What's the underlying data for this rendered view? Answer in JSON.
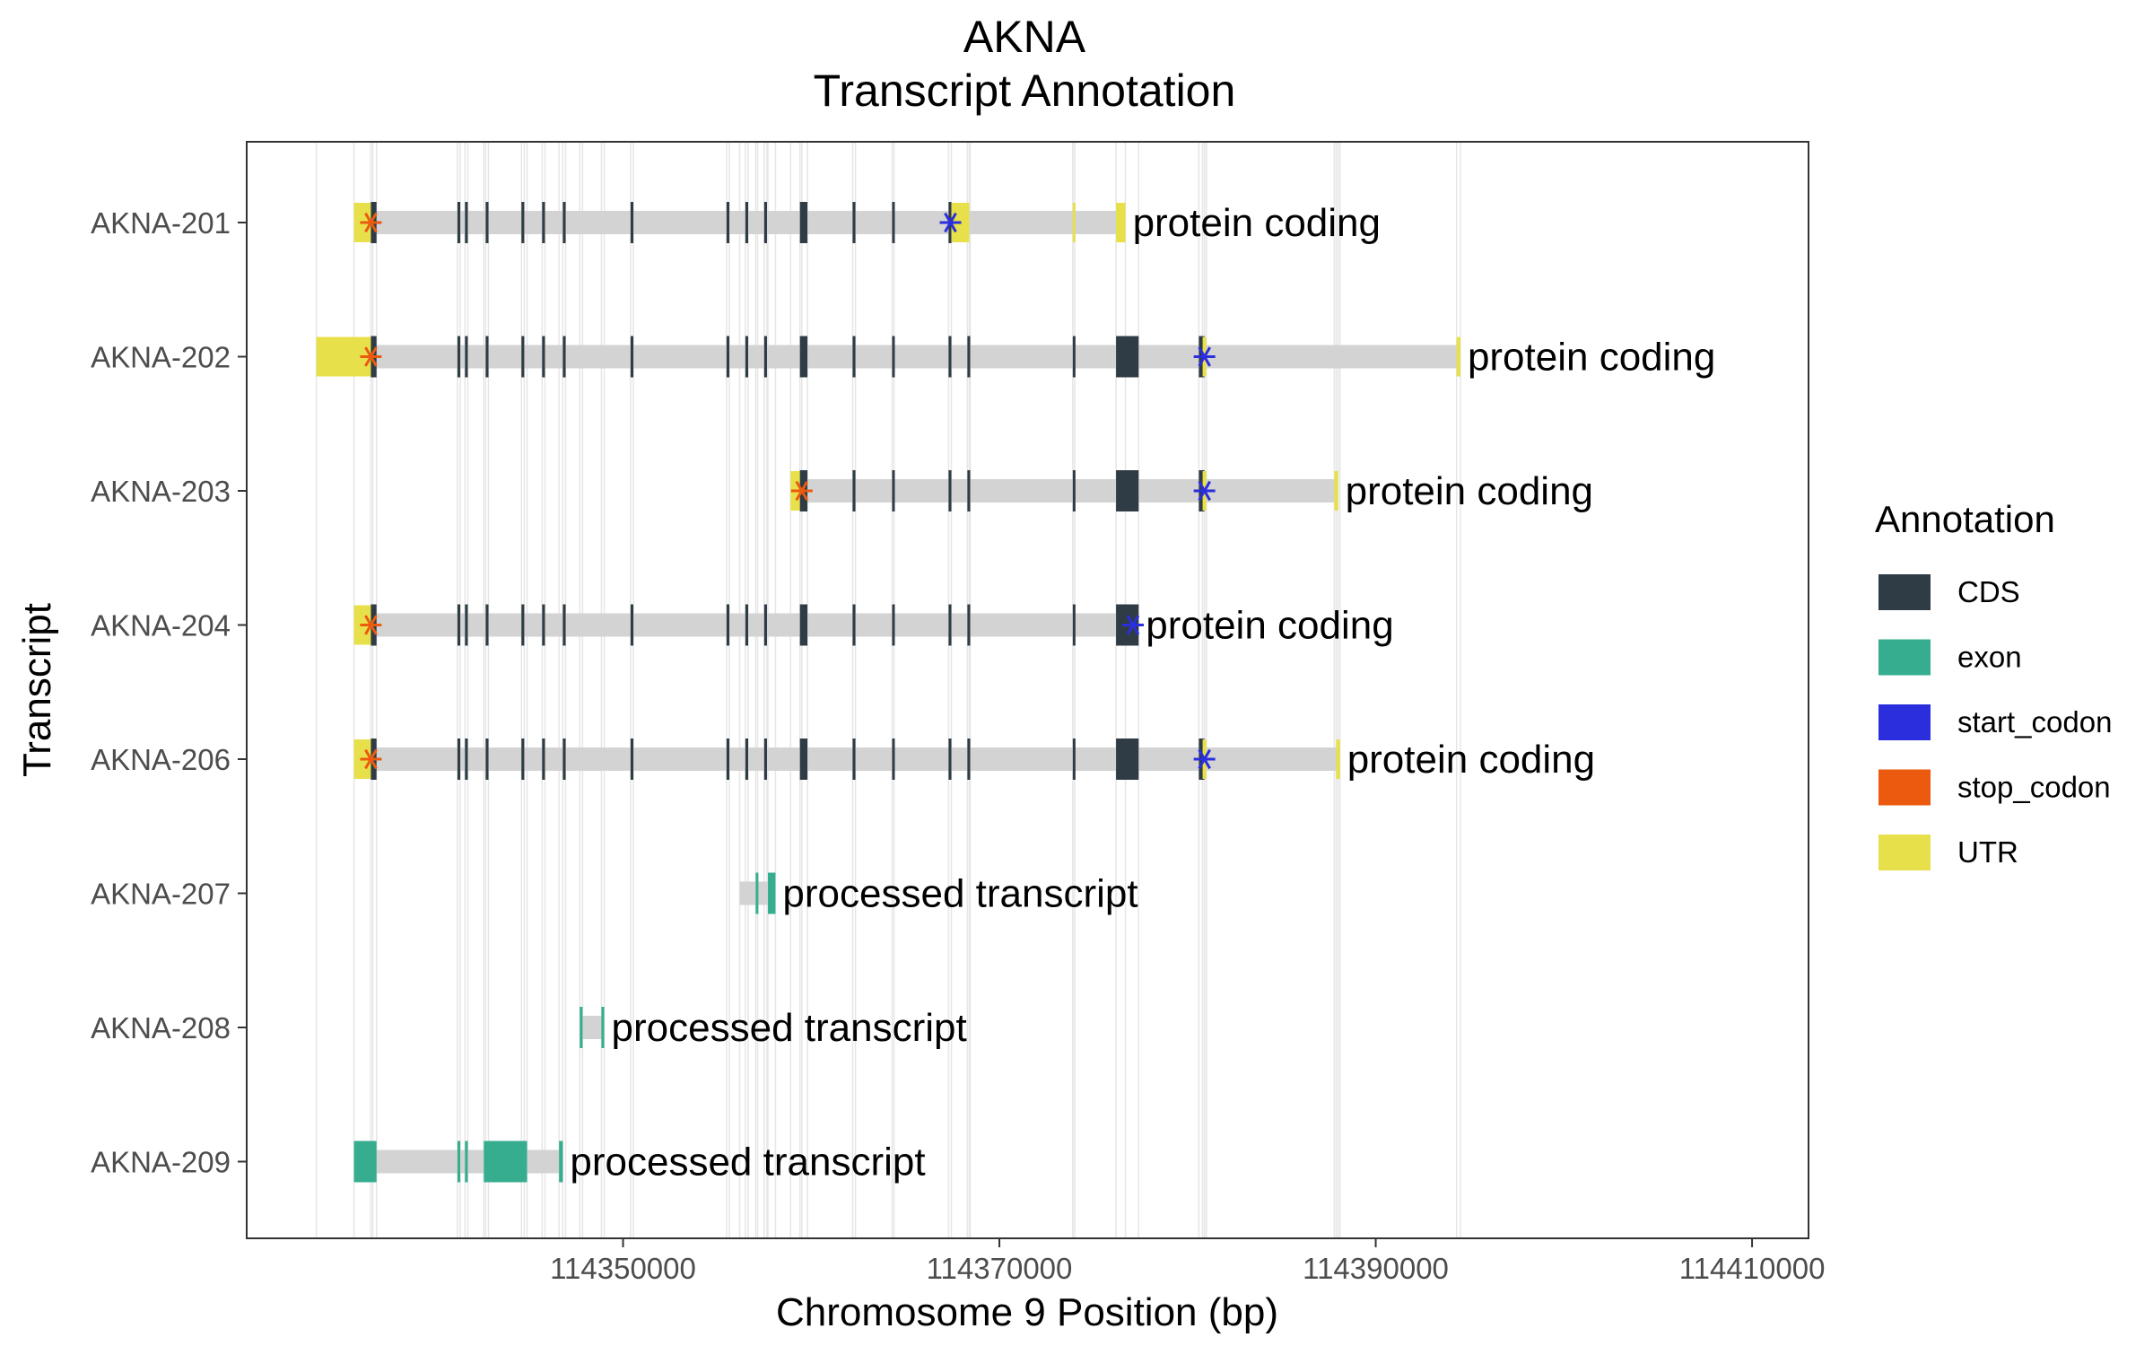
{
  "chart_data": {
    "type": "gene-track",
    "title": [
      "AKNA",
      "Transcript Annotation"
    ],
    "xlabel": "Chromosome 9 Position (bp)",
    "ylabel": "Transcript",
    "xlim": [
      114330000,
      114413000
    ],
    "xticks": [
      114350000,
      114370000,
      114390000,
      114410000
    ],
    "grid": "vertical lines at feature boundaries",
    "legend": {
      "title": "Annotation",
      "position": "right",
      "items": [
        {
          "label": "CDS",
          "color": "#2F3C45"
        },
        {
          "label": "exon",
          "color": "#35AD8E"
        },
        {
          "label": "start_codon",
          "color": "#2A2EDC"
        },
        {
          "label": "stop_codon",
          "color": "#EB5A0F"
        },
        {
          "label": "UTR",
          "color": "#E8E04A"
        }
      ]
    },
    "intron_color": "#D3D3D3",
    "transcripts": [
      {
        "name": "AKNA-209",
        "biotype": "processed transcript",
        "start": 114335700,
        "end": 114346800,
        "features": [
          {
            "type": "exon",
            "start": 114335700,
            "end": 114336900
          },
          {
            "type": "exon",
            "start": 114341200,
            "end": 114341350
          },
          {
            "type": "exon",
            "start": 114341600,
            "end": 114341750
          },
          {
            "type": "exon",
            "start": 114342600,
            "end": 114344900
          },
          {
            "type": "exon",
            "start": 114346600,
            "end": 114346800
          }
        ]
      },
      {
        "name": "AKNA-208",
        "biotype": "processed transcript",
        "start": 114347700,
        "end": 114349000,
        "features": [
          {
            "type": "exon",
            "start": 114347700,
            "end": 114347850
          },
          {
            "type": "exon",
            "start": 114348850,
            "end": 114349000
          }
        ]
      },
      {
        "name": "AKNA-207",
        "biotype": "processed transcript",
        "start": 114356200,
        "end": 114358100,
        "features": [
          {
            "type": "exon",
            "start": 114357050,
            "end": 114357150
          },
          {
            "type": "exon",
            "start": 114357700,
            "end": 114358100
          }
        ]
      },
      {
        "name": "AKNA-206",
        "biotype": "protein coding",
        "start": 114335700,
        "end": 114388100,
        "features": [
          {
            "type": "UTR",
            "start": 114335700,
            "end": 114336700
          },
          {
            "type": "CDS",
            "start": 114336600,
            "end": 114336900
          },
          {
            "type": "CDS",
            "start": 114341200,
            "end": 114341350
          },
          {
            "type": "CDS",
            "start": 114341600,
            "end": 114341750
          },
          {
            "type": "CDS",
            "start": 114342700,
            "end": 114342850
          },
          {
            "type": "CDS",
            "start": 114344600,
            "end": 114344750
          },
          {
            "type": "CDS",
            "start": 114345700,
            "end": 114345850
          },
          {
            "type": "CDS",
            "start": 114346800,
            "end": 114346950
          },
          {
            "type": "CDS",
            "start": 114350400,
            "end": 114350550
          },
          {
            "type": "CDS",
            "start": 114355500,
            "end": 114355650
          },
          {
            "type": "CDS",
            "start": 114356500,
            "end": 114356650
          },
          {
            "type": "CDS",
            "start": 114357500,
            "end": 114357650
          },
          {
            "type": "CDS",
            "start": 114359400,
            "end": 114359800
          },
          {
            "type": "CDS",
            "start": 114362200,
            "end": 114362350
          },
          {
            "type": "CDS",
            "start": 114364300,
            "end": 114364400
          },
          {
            "type": "CDS",
            "start": 114367300,
            "end": 114367450
          },
          {
            "type": "CDS",
            "start": 114368300,
            "end": 114368450
          },
          {
            "type": "CDS",
            "start": 114373900,
            "end": 114374000
          },
          {
            "type": "CDS",
            "start": 114376200,
            "end": 114377400
          },
          {
            "type": "CDS",
            "start": 114380600,
            "end": 114380900
          },
          {
            "type": "UTR",
            "start": 114380800,
            "end": 114381000
          },
          {
            "type": "UTR",
            "start": 114387900,
            "end": 114388100
          },
          {
            "type": "stop_codon",
            "at": 114336600
          },
          {
            "type": "start_codon",
            "at": 114380900
          }
        ]
      },
      {
        "name": "AKNA-204",
        "biotype": "protein coding",
        "start": 114335700,
        "end": 114377400,
        "features": [
          {
            "type": "UTR",
            "start": 114335700,
            "end": 114336700
          },
          {
            "type": "CDS",
            "start": 114336600,
            "end": 114336900
          },
          {
            "type": "CDS",
            "start": 114341200,
            "end": 114341350
          },
          {
            "type": "CDS",
            "start": 114341600,
            "end": 114341750
          },
          {
            "type": "CDS",
            "start": 114342700,
            "end": 114342850
          },
          {
            "type": "CDS",
            "start": 114344600,
            "end": 114344750
          },
          {
            "type": "CDS",
            "start": 114345700,
            "end": 114345850
          },
          {
            "type": "CDS",
            "start": 114346800,
            "end": 114346950
          },
          {
            "type": "CDS",
            "start": 114350400,
            "end": 114350550
          },
          {
            "type": "CDS",
            "start": 114355500,
            "end": 114355650
          },
          {
            "type": "CDS",
            "start": 114356500,
            "end": 114356650
          },
          {
            "type": "CDS",
            "start": 114357500,
            "end": 114357650
          },
          {
            "type": "CDS",
            "start": 114359400,
            "end": 114359800
          },
          {
            "type": "CDS",
            "start": 114362200,
            "end": 114362350
          },
          {
            "type": "CDS",
            "start": 114364300,
            "end": 114364400
          },
          {
            "type": "CDS",
            "start": 114367300,
            "end": 114367450
          },
          {
            "type": "CDS",
            "start": 114368300,
            "end": 114368450
          },
          {
            "type": "CDS",
            "start": 114373900,
            "end": 114374000
          },
          {
            "type": "CDS",
            "start": 114376200,
            "end": 114377400
          },
          {
            "type": "stop_codon",
            "at": 114336600
          },
          {
            "type": "start_codon",
            "at": 114377100
          }
        ]
      },
      {
        "name": "AKNA-203",
        "biotype": "protein coding",
        "start": 114358900,
        "end": 114388000,
        "features": [
          {
            "type": "UTR",
            "start": 114358900,
            "end": 114359500
          },
          {
            "type": "CDS",
            "start": 114359400,
            "end": 114359800
          },
          {
            "type": "CDS",
            "start": 114362200,
            "end": 114362350
          },
          {
            "type": "CDS",
            "start": 114364300,
            "end": 114364400
          },
          {
            "type": "CDS",
            "start": 114367300,
            "end": 114367450
          },
          {
            "type": "CDS",
            "start": 114368300,
            "end": 114368450
          },
          {
            "type": "CDS",
            "start": 114373900,
            "end": 114374000
          },
          {
            "type": "CDS",
            "start": 114376200,
            "end": 114377400
          },
          {
            "type": "CDS",
            "start": 114380600,
            "end": 114380900
          },
          {
            "type": "UTR",
            "start": 114380800,
            "end": 114381000
          },
          {
            "type": "UTR",
            "start": 114387800,
            "end": 114388000
          },
          {
            "type": "stop_codon",
            "at": 114359500
          },
          {
            "type": "start_codon",
            "at": 114380900
          }
        ]
      },
      {
        "name": "AKNA-202",
        "biotype": "protein coding",
        "start": 114333700,
        "end": 114394500,
        "features": [
          {
            "type": "UTR",
            "start": 114333700,
            "end": 114336700
          },
          {
            "type": "CDS",
            "start": 114336600,
            "end": 114336900
          },
          {
            "type": "CDS",
            "start": 114341200,
            "end": 114341350
          },
          {
            "type": "CDS",
            "start": 114341600,
            "end": 114341750
          },
          {
            "type": "CDS",
            "start": 114342700,
            "end": 114342850
          },
          {
            "type": "CDS",
            "start": 114344600,
            "end": 114344750
          },
          {
            "type": "CDS",
            "start": 114345700,
            "end": 114345850
          },
          {
            "type": "CDS",
            "start": 114346800,
            "end": 114346950
          },
          {
            "type": "CDS",
            "start": 114350400,
            "end": 114350550
          },
          {
            "type": "CDS",
            "start": 114355500,
            "end": 114355650
          },
          {
            "type": "CDS",
            "start": 114356500,
            "end": 114356650
          },
          {
            "type": "CDS",
            "start": 114357500,
            "end": 114357650
          },
          {
            "type": "CDS",
            "start": 114359400,
            "end": 114359800
          },
          {
            "type": "CDS",
            "start": 114362200,
            "end": 114362350
          },
          {
            "type": "CDS",
            "start": 114364300,
            "end": 114364400
          },
          {
            "type": "CDS",
            "start": 114367300,
            "end": 114367450
          },
          {
            "type": "CDS",
            "start": 114368300,
            "end": 114368450
          },
          {
            "type": "CDS",
            "start": 114373900,
            "end": 114374000
          },
          {
            "type": "CDS",
            "start": 114376200,
            "end": 114377400
          },
          {
            "type": "CDS",
            "start": 114380600,
            "end": 114380900
          },
          {
            "type": "UTR",
            "start": 114380800,
            "end": 114381000
          },
          {
            "type": "UTR",
            "start": 114394300,
            "end": 114394500
          },
          {
            "type": "stop_codon",
            "at": 114336600
          },
          {
            "type": "start_codon",
            "at": 114380900
          }
        ]
      },
      {
        "name": "AKNA-201",
        "biotype": "protein coding",
        "start": 114335700,
        "end": 114376700,
        "features": [
          {
            "type": "UTR",
            "start": 114335700,
            "end": 114336700
          },
          {
            "type": "CDS",
            "start": 114336600,
            "end": 114336900
          },
          {
            "type": "CDS",
            "start": 114341200,
            "end": 114341350
          },
          {
            "type": "CDS",
            "start": 114341600,
            "end": 114341750
          },
          {
            "type": "CDS",
            "start": 114342700,
            "end": 114342850
          },
          {
            "type": "CDS",
            "start": 114344600,
            "end": 114344750
          },
          {
            "type": "CDS",
            "start": 114345700,
            "end": 114345850
          },
          {
            "type": "CDS",
            "start": 114346800,
            "end": 114346950
          },
          {
            "type": "CDS",
            "start": 114350400,
            "end": 114350550
          },
          {
            "type": "CDS",
            "start": 114355500,
            "end": 114355650
          },
          {
            "type": "CDS",
            "start": 114356500,
            "end": 114356650
          },
          {
            "type": "CDS",
            "start": 114357500,
            "end": 114357650
          },
          {
            "type": "CDS",
            "start": 114359400,
            "end": 114359800
          },
          {
            "type": "CDS",
            "start": 114362200,
            "end": 114362350
          },
          {
            "type": "CDS",
            "start": 114364300,
            "end": 114364400
          },
          {
            "type": "CDS",
            "start": 114367300,
            "end": 114367450
          },
          {
            "type": "UTR",
            "start": 114367450,
            "end": 114368400
          },
          {
            "type": "UTR",
            "start": 114373900,
            "end": 114374000
          },
          {
            "type": "UTR",
            "start": 114376200,
            "end": 114376700
          },
          {
            "type": "stop_codon",
            "at": 114336600
          },
          {
            "type": "start_codon",
            "at": 114367400
          }
        ]
      }
    ]
  }
}
